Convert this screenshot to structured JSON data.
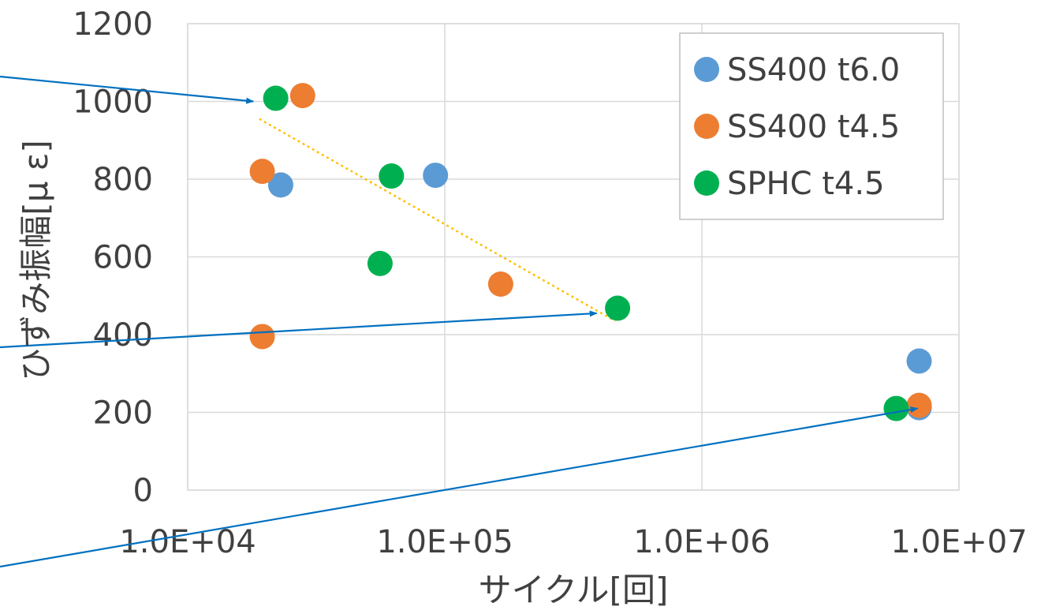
{
  "chart_data": {
    "type": "scatter",
    "xlabel": "サイクル[回]",
    "ylabel": "ひずみ振幅[μ ε]",
    "xscale": "log",
    "xlim": [
      10000,
      10000000
    ],
    "ylim": [
      0,
      1200
    ],
    "x_ticks": [
      10000,
      100000,
      1000000,
      10000000
    ],
    "x_tick_labels": [
      "1.0E+04",
      "1.0E+05",
      "1.0E+06",
      "1.0E+07"
    ],
    "y_ticks": [
      0,
      200,
      400,
      600,
      800,
      1000,
      1200
    ],
    "y_tick_labels": [
      "0",
      "200",
      "400",
      "600",
      "800",
      "1000",
      "1200"
    ],
    "grid": true,
    "legend": "top-right",
    "series": [
      {
        "name": "SS400 t6.0",
        "color": "#5b9bd5",
        "points": [
          [
            23000,
            785
          ],
          [
            92000,
            810
          ],
          [
            7000000,
            332
          ],
          [
            7000000,
            212
          ]
        ]
      },
      {
        "name": "SS400 t4.5",
        "color": "#ed7d31",
        "points": [
          [
            28000,
            1015
          ],
          [
            19500,
            820
          ],
          [
            19500,
            395
          ],
          [
            165000,
            530
          ],
          [
            7000000,
            218
          ]
        ]
      },
      {
        "name": "SPHC t4.5",
        "color": "#00b050",
        "points": [
          [
            22000,
            1008
          ],
          [
            62000,
            808
          ],
          [
            56000,
            583
          ],
          [
            470000,
            468
          ],
          [
            5700000,
            210
          ]
        ]
      }
    ],
    "trendline": {
      "color": "#ffc000",
      "style": "dotted",
      "from": [
        19000,
        955
      ],
      "to": [
        460000,
        435
      ]
    },
    "annotation_arrows": [
      {
        "color": "#0070c0",
        "to": [
          18000,
          1000
        ]
      },
      {
        "color": "#0070c0",
        "to": [
          390000,
          455
        ]
      },
      {
        "color": "#0070c0",
        "to": [
          6900000,
          210
        ]
      }
    ]
  }
}
